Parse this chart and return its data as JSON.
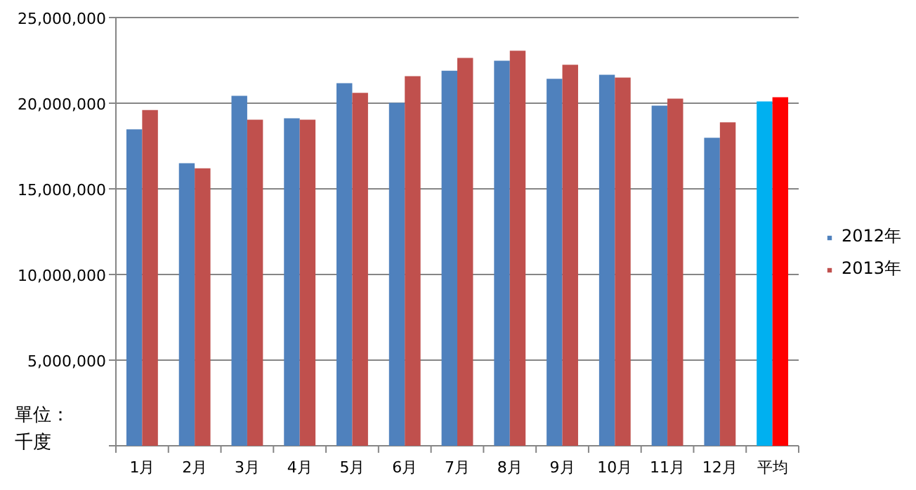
{
  "chart_data": {
    "type": "bar",
    "categories": [
      "1月",
      "2月",
      "3月",
      "4月",
      "5月",
      "6月",
      "7月",
      "8月",
      "9月",
      "10月",
      "11月",
      "12月",
      "平均"
    ],
    "series": [
      {
        "name": "2012年",
        "color": "#4f81bd",
        "colors": [
          "#4f81bd",
          "#4f81bd",
          "#4f81bd",
          "#4f81bd",
          "#4f81bd",
          "#4f81bd",
          "#4f81bd",
          "#4f81bd",
          "#4f81bd",
          "#4f81bd",
          "#4f81bd",
          "#4f81bd",
          "#00b0f0"
        ],
        "values": [
          18470000,
          16500000,
          20430000,
          19120000,
          21170000,
          20020000,
          21900000,
          22480000,
          21420000,
          21660000,
          19860000,
          17980000,
          20100000
        ]
      },
      {
        "name": "2013年",
        "color": "#c0504d",
        "colors": [
          "#c0504d",
          "#c0504d",
          "#c0504d",
          "#c0504d",
          "#c0504d",
          "#c0504d",
          "#c0504d",
          "#c0504d",
          "#c0504d",
          "#c0504d",
          "#c0504d",
          "#c0504d",
          "#ff0000"
        ],
        "values": [
          19600000,
          16200000,
          19040000,
          19040000,
          20600000,
          21580000,
          22640000,
          23060000,
          22240000,
          21500000,
          20270000,
          18880000,
          20350000
        ]
      }
    ],
    "ylim": [
      0,
      25000000
    ],
    "yticks": [
      {
        "value": 0,
        "label": null
      },
      {
        "value": 5000000,
        "label": "5,000,000"
      },
      {
        "value": 10000000,
        "label": "10,000,000"
      },
      {
        "value": 15000000,
        "label": "15,000,000"
      },
      {
        "value": 20000000,
        "label": "20,000,000"
      },
      {
        "value": 25000000,
        "label": "25,000,000"
      }
    ],
    "grid": "y",
    "legend": "right",
    "annotations": [
      "單位：千度"
    ]
  }
}
